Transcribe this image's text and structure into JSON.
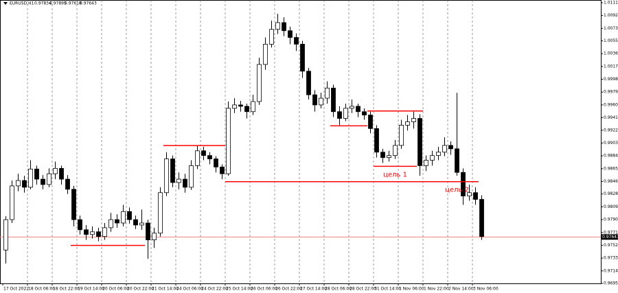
{
  "chart_data": {
    "type": "candlestick",
    "title": "EURUSD,H1",
    "title_values": [
      0.97834,
      0.97895,
      0.97618,
      0.97643
    ],
    "categories": [
      "17 Oct 2022",
      null,
      null,
      null,
      "18 Oct 06:00",
      null,
      null,
      null,
      "18 Oct 22:00",
      null,
      null,
      null,
      "19 Oct 14:00",
      null,
      null,
      null,
      "20 Oct 06:00",
      null,
      null,
      null,
      "20 Oct 22:00",
      null,
      null,
      null,
      "21 Oct 14:00",
      null,
      null,
      null,
      "24 Oct 06:00",
      null,
      null,
      null,
      "24 Oct 22:00",
      null,
      null,
      null,
      "25 Oct 14:00",
      null,
      null,
      null,
      "26 Oct 06:00",
      null,
      null,
      null,
      "26 Oct 22:00",
      null,
      null,
      null,
      "27 Oct 14:00",
      null,
      null,
      null,
      "28 Oct 06:00",
      null,
      null,
      null,
      "28 Oct 22:00",
      null,
      null,
      null,
      "31 Oct 14:00",
      null,
      null,
      null,
      "1 Nov 06:00",
      null,
      null,
      null,
      "1 Nov 22:00",
      null,
      null,
      null,
      "2 Nov 14:00",
      null,
      null,
      null,
      "3 Nov 06:00",
      null
    ],
    "open": [
      0.9745,
      0.979,
      0.984,
      0.9848,
      0.9838,
      0.9865,
      0.985,
      0.9842,
      0.9858,
      0.9866,
      0.985,
      0.9835,
      0.979,
      0.9775,
      0.9768,
      0.9772,
      0.9765,
      0.9778,
      0.979,
      0.9785,
      0.9802,
      0.979,
      0.9782,
      0.9785,
      0.976,
      0.977,
      0.983,
      0.988,
      0.9845,
      0.985,
      0.9838,
      0.987,
      0.9892,
      0.9885,
      0.988,
      0.9868,
      0.9858,
      0.9955,
      0.996,
      0.9958,
      0.995,
      0.9965,
      1.002,
      1.005,
      1.0072,
      1.0082,
      1.007,
      1.006,
      1.005,
      1.001,
      0.9975,
      0.996,
      0.997,
      0.9985,
      0.995,
      0.994,
      0.9955,
      0.9958,
      0.995,
      0.9945,
      0.9925,
      0.989,
      0.9882,
      0.9885,
      0.99,
      0.993,
      0.9935,
      0.994,
      0.987,
      0.9878,
      0.9885,
      0.989,
      0.99,
      0.9895,
      0.986,
      0.9825,
      0.983,
      0.982
    ],
    "high": [
      0.9795,
      0.9848,
      0.9858,
      0.9855,
      0.9878,
      0.987,
      0.9856,
      0.9866,
      0.9876,
      0.987,
      0.9856,
      0.984,
      0.9796,
      0.9782,
      0.978,
      0.9778,
      0.9785,
      0.98,
      0.9798,
      0.9812,
      0.9808,
      0.9796,
      0.9805,
      0.979,
      0.9778,
      0.9838,
      0.989,
      0.9885,
      0.986,
      0.9858,
      0.9878,
      0.99,
      0.9898,
      0.989,
      0.9884,
      0.9872,
      0.9965,
      0.997,
      0.9966,
      0.9962,
      0.9975,
      1.003,
      1.006,
      1.0085,
      1.0095,
      1.009,
      1.0076,
      1.0066,
      1.0055,
      1.0015,
      0.9982,
      0.9978,
      0.9995,
      0.999,
      0.9958,
      0.9962,
      0.9968,
      0.9962,
      0.9955,
      0.995,
      0.993,
      0.9895,
      0.9892,
      0.9908,
      0.9938,
      0.9945,
      0.995,
      0.9946,
      0.9885,
      0.9892,
      0.9898,
      0.9912,
      0.9906,
      0.9978,
      0.9866,
      0.9842,
      0.9838,
      0.9826
    ],
    "low": [
      0.9725,
      0.9785,
      0.9832,
      0.983,
      0.9835,
      0.9842,
      0.9835,
      0.9838,
      0.985,
      0.9842,
      0.9828,
      0.978,
      0.9768,
      0.976,
      0.9762,
      0.9758,
      0.976,
      0.9772,
      0.9778,
      0.978,
      0.9784,
      0.9776,
      0.9775,
      0.9732,
      0.9748,
      0.9765,
      0.9825,
      0.9838,
      0.9835,
      0.983,
      0.9834,
      0.9865,
      0.9878,
      0.9872,
      0.986,
      0.985,
      0.9855,
      0.9948,
      0.995,
      0.994,
      0.9945,
      0.996,
      1.0012,
      1.0045,
      1.0065,
      1.0062,
      1.005,
      1.004,
      1.0,
      0.9968,
      0.995,
      0.9955,
      0.9962,
      0.9942,
      0.993,
      0.9936,
      0.9948,
      0.9942,
      0.9938,
      0.9918,
      0.9882,
      0.9874,
      0.9876,
      0.988,
      0.9895,
      0.9922,
      0.9925,
      0.9855,
      0.9862,
      0.987,
      0.9878,
      0.9884,
      0.9886,
      0.9855,
      0.9812,
      0.9818,
      0.9812,
      0.976
    ],
    "close": [
      0.979,
      0.984,
      0.9848,
      0.9838,
      0.9865,
      0.985,
      0.9842,
      0.9858,
      0.9866,
      0.985,
      0.9835,
      0.979,
      0.9775,
      0.9768,
      0.9772,
      0.9765,
      0.9778,
      0.979,
      0.9785,
      0.9802,
      0.979,
      0.9782,
      0.9785,
      0.976,
      0.977,
      0.983,
      0.988,
      0.9845,
      0.985,
      0.9838,
      0.987,
      0.9892,
      0.9885,
      0.988,
      0.9868,
      0.9858,
      0.9955,
      0.996,
      0.9958,
      0.995,
      0.9965,
      1.002,
      1.005,
      1.0072,
      1.0082,
      1.007,
      1.006,
      1.005,
      1.001,
      0.9975,
      0.996,
      0.997,
      0.9985,
      0.995,
      0.994,
      0.9955,
      0.9958,
      0.995,
      0.9945,
      0.9925,
      0.989,
      0.9882,
      0.9885,
      0.99,
      0.993,
      0.9935,
      0.994,
      0.987,
      0.9878,
      0.9885,
      0.989,
      0.99,
      0.9895,
      0.986,
      0.9825,
      0.983,
      0.982,
      0.9765
    ],
    "ylim": [
      0.96955,
      1.01155
    ],
    "yticks": [
      1.01115,
      1.00925,
      1.00735,
      {
        "value": 1.0055,
        "label": "1.00550"
      },
      {
        "value": 1.0036,
        "label": "1.00360"
      },
      {
        "value": 1.0017,
        "label": "1.00170"
      },
      {
        "value": 0.9998,
        "label": "0.99980"
      },
      {
        "value": 0.9979,
        "label": "0.99790"
      },
      {
        "value": 0.996,
        "label": "0.99600"
      },
      {
        "value": 0.9941,
        "label": "0.99410"
      },
      0.99225,
      0.99035,
      0.98845,
      0.98655,
      0.98465,
      {
        "value": 0.9828,
        "label": "0.98280"
      },
      {
        "value": 0.9809,
        "label": "0.98090"
      },
      {
        "value": 0.979,
        "label": "0.97900"
      },
      {
        "value": 0.9771,
        "label": "0.97710"
      },
      {
        "value": 0.9752,
        "label": "0.97520"
      },
      {
        "value": 0.9733,
        "label": "0.97330"
      },
      {
        "value": 0.9714,
        "label": "0.97140"
      },
      0.96955
    ],
    "grid": true,
    "current_price": 0.97643,
    "current_price_color": "#f08080",
    "levels_color": "#ff0000",
    "levels": [
      {
        "value": 0.97518,
        "from": 11,
        "to": 22
      },
      {
        "value": 0.98998,
        "from": 26,
        "to": 35
      },
      {
        "value": 0.98463,
        "from": 36,
        "to": 76,
        "label": "цель 2"
      },
      {
        "value": 0.9929,
        "from": 53,
        "to": 58
      },
      {
        "value": 0.9951,
        "from": 59,
        "to": 67
      },
      {
        "value": 0.9869,
        "from": 60,
        "to": 66,
        "label": "цель 1"
      }
    ]
  }
}
